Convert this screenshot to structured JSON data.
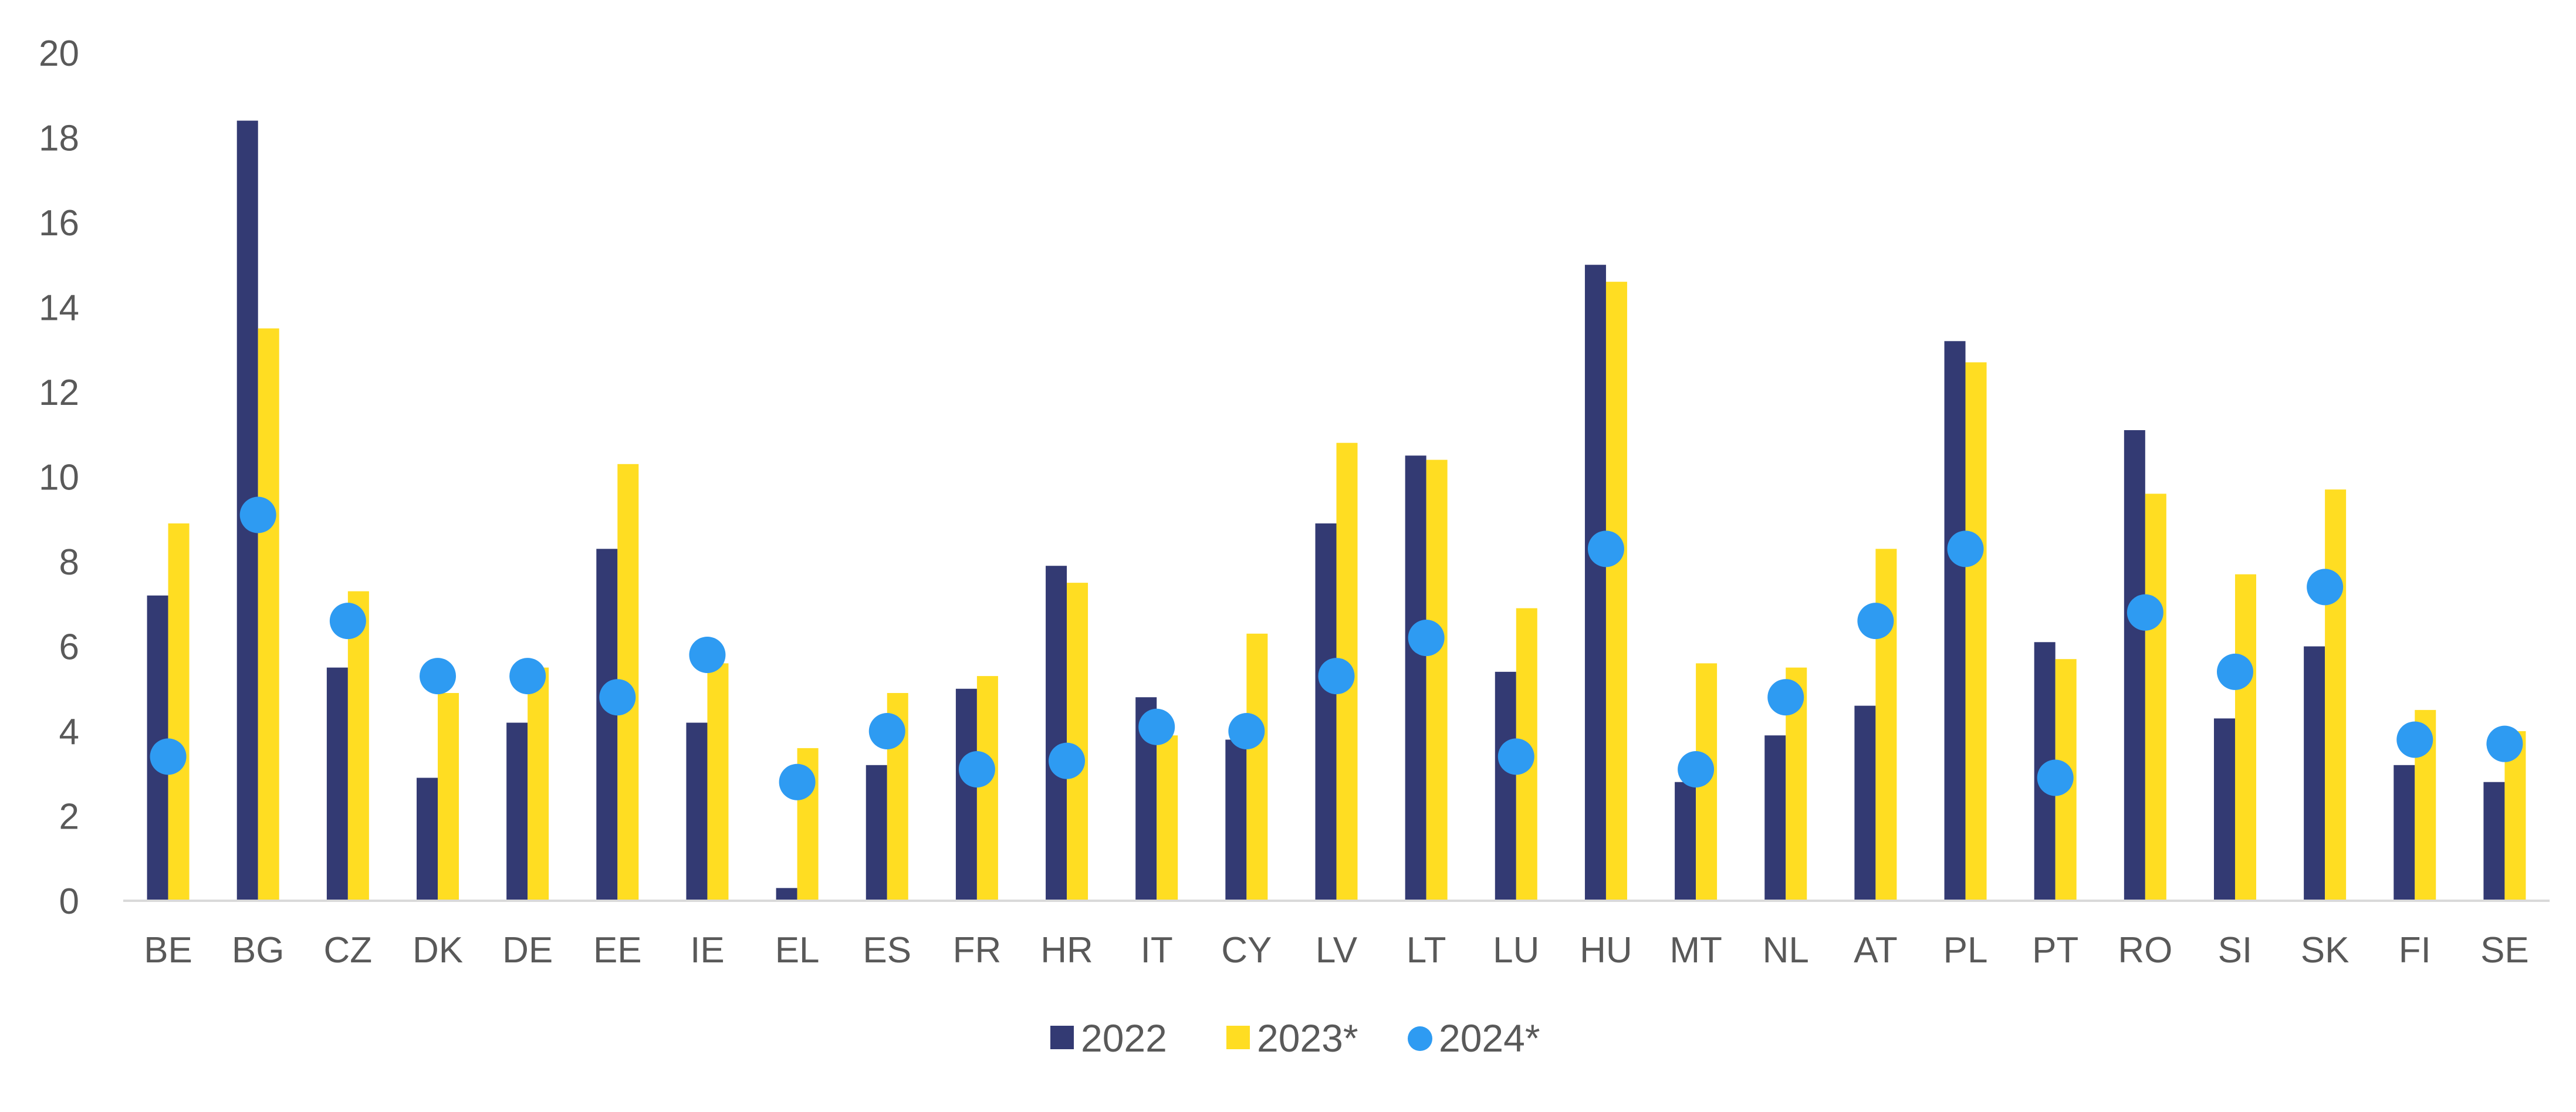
{
  "chart_data": {
    "type": "bar",
    "categories": [
      "BE",
      "BG",
      "CZ",
      "DK",
      "DE",
      "EE",
      "IE",
      "EL",
      "ES",
      "FR",
      "HR",
      "IT",
      "CY",
      "LV",
      "LT",
      "LU",
      "HU",
      "MT",
      "NL",
      "AT",
      "PL",
      "PT",
      "RO",
      "SI",
      "SK",
      "FI",
      "SE"
    ],
    "series": [
      {
        "name": "2022",
        "type": "bar",
        "color": "#333a73",
        "values": [
          7.2,
          18.4,
          5.5,
          2.9,
          4.2,
          8.3,
          4.2,
          0.3,
          3.2,
          5.0,
          7.9,
          4.8,
          3.8,
          8.9,
          10.5,
          5.4,
          15.0,
          2.8,
          3.9,
          4.6,
          13.2,
          6.1,
          11.1,
          4.3,
          6.0,
          3.2,
          2.8
        ]
      },
      {
        "name": "2023*",
        "type": "bar",
        "color": "#ffdd22",
        "values": [
          8.9,
          13.5,
          7.3,
          4.9,
          5.5,
          10.3,
          5.6,
          3.6,
          4.9,
          5.3,
          7.5,
          3.9,
          6.3,
          10.8,
          10.4,
          6.9,
          14.6,
          5.6,
          5.5,
          8.3,
          12.7,
          5.7,
          9.6,
          7.7,
          9.7,
          4.5,
          4.0
        ]
      },
      {
        "name": "2024*",
        "type": "point",
        "color": "#2e9bf2",
        "values": [
          3.4,
          9.1,
          6.6,
          5.3,
          5.3,
          4.8,
          5.8,
          2.8,
          4.0,
          3.1,
          3.3,
          4.1,
          4.0,
          5.3,
          6.2,
          3.4,
          8.3,
          3.1,
          4.8,
          6.6,
          8.3,
          2.9,
          6.8,
          5.4,
          7.4,
          3.8,
          3.7
        ]
      }
    ],
    "ylim": [
      0,
      20
    ],
    "yticks": [
      0,
      2,
      4,
      6,
      8,
      10,
      12,
      14,
      16,
      18,
      20
    ],
    "title": "",
    "xlabel": "",
    "ylabel": "",
    "grid": false,
    "legend_position": "bottom-center"
  }
}
